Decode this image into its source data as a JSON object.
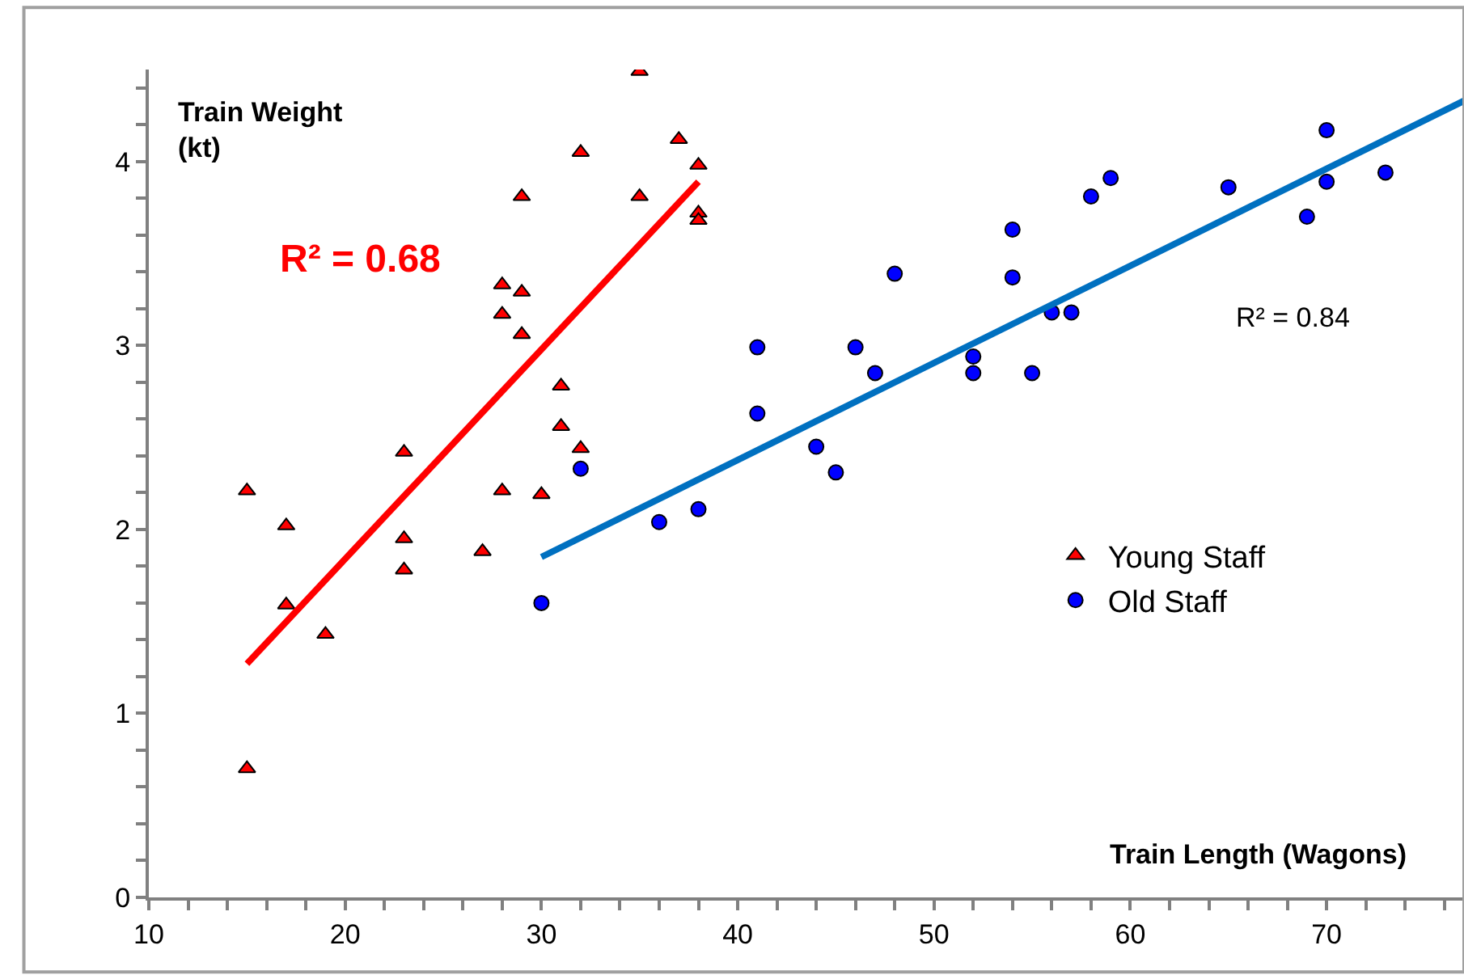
{
  "chart_data": {
    "type": "scatter",
    "xlabel": "Train Length (Wagons)",
    "ylabel": "Train Weight (kt)",
    "xlim": [
      10,
      77
    ],
    "xticks": [
      10,
      {
        "value": 12,
        "label": null
      },
      {
        "value": 14,
        "label": null
      },
      {
        "value": 16,
        "label": null
      },
      {
        "value": 18,
        "label": null
      },
      20,
      {
        "value": 22,
        "label": null
      },
      {
        "value": 24,
        "label": null
      },
      {
        "value": 26,
        "label": null
      },
      {
        "value": 28,
        "label": null
      },
      30,
      {
        "value": 32,
        "label": null
      },
      {
        "value": 34,
        "label": null
      },
      {
        "value": 36,
        "label": null
      },
      {
        "value": 38,
        "label": null
      },
      40,
      {
        "value": 42,
        "label": null
      },
      {
        "value": 44,
        "label": null
      },
      {
        "value": 46,
        "label": null
      },
      {
        "value": 48,
        "label": null
      },
      50,
      {
        "value": 52,
        "label": null
      },
      {
        "value": 54,
        "label": null
      },
      {
        "value": 56,
        "label": null
      },
      {
        "value": 58,
        "label": null
      },
      60,
      {
        "value": 62,
        "label": null
      },
      {
        "value": 64,
        "label": null
      },
      {
        "value": 66,
        "label": null
      },
      {
        "value": 68,
        "label": null
      },
      70,
      {
        "value": 72,
        "label": null
      },
      {
        "value": 74,
        "label": null
      },
      {
        "value": 76,
        "label": null
      }
    ],
    "ylim": [
      0,
      4.5
    ],
    "yticks": [
      0,
      {
        "value": 0.2,
        "label": null
      },
      {
        "value": 0.4,
        "label": null
      },
      {
        "value": 0.6,
        "label": null
      },
      {
        "value": 0.8,
        "label": null
      },
      1,
      {
        "value": 1.2,
        "label": null
      },
      {
        "value": 1.4,
        "label": null
      },
      {
        "value": 1.6,
        "label": null
      },
      {
        "value": 1.8,
        "label": null
      },
      2,
      {
        "value": 2.2,
        "label": null
      },
      {
        "value": 2.4,
        "label": null
      },
      {
        "value": 2.6,
        "label": null
      },
      {
        "value": 2.8,
        "label": null
      },
      3,
      {
        "value": 3.2,
        "label": null
      },
      {
        "value": 3.4,
        "label": null
      },
      {
        "value": 3.6,
        "label": null
      },
      {
        "value": 3.8,
        "label": null
      },
      4,
      {
        "value": 4.2,
        "label": null
      },
      {
        "value": 4.4,
        "label": null
      }
    ],
    "legend": "right",
    "series": [
      {
        "name": "Young Staff",
        "marker": "triangle",
        "color": "#ff0000",
        "x": [
          15,
          17,
          17,
          19,
          15,
          23,
          23,
          23,
          27,
          28,
          30,
          28,
          29,
          28,
          29,
          29,
          31,
          31,
          32,
          32,
          35,
          35,
          37,
          38,
          38,
          38
        ],
        "values": [
          2.21,
          2.02,
          1.59,
          1.43,
          0.7,
          2.42,
          1.95,
          1.78,
          1.88,
          2.21,
          2.19,
          3.33,
          3.29,
          3.17,
          3.06,
          3.81,
          2.78,
          2.56,
          2.44,
          4.05,
          4.49,
          3.81,
          4.12,
          3.98,
          3.72,
          3.68
        ]
      },
      {
        "name": "Old Staff",
        "marker": "circle",
        "color": "#0000ff",
        "x": [
          30,
          32,
          36,
          38,
          41,
          41,
          44,
          45,
          46,
          47,
          48,
          52,
          52,
          54,
          54,
          55,
          56,
          57,
          58,
          59,
          65,
          69,
          70,
          70,
          73
        ],
        "values": [
          1.6,
          2.33,
          2.04,
          2.11,
          2.99,
          2.63,
          2.45,
          2.31,
          2.99,
          2.85,
          3.39,
          2.94,
          2.85,
          3.63,
          3.37,
          2.85,
          3.18,
          3.18,
          3.81,
          3.91,
          3.86,
          3.7,
          3.89,
          4.17,
          3.94
        ]
      },
      {
        "type": "line",
        "color": "#ff0000",
        "x": [
          15,
          38
        ],
        "values": [
          1.27,
          3.89
        ]
      },
      {
        "type": "line",
        "color": "#0070c0",
        "x": [
          30,
          77
        ],
        "values": [
          1.85,
          4.33
        ]
      }
    ],
    "annotations": [
      "R² = 0.68",
      "R² = 0.84"
    ]
  }
}
